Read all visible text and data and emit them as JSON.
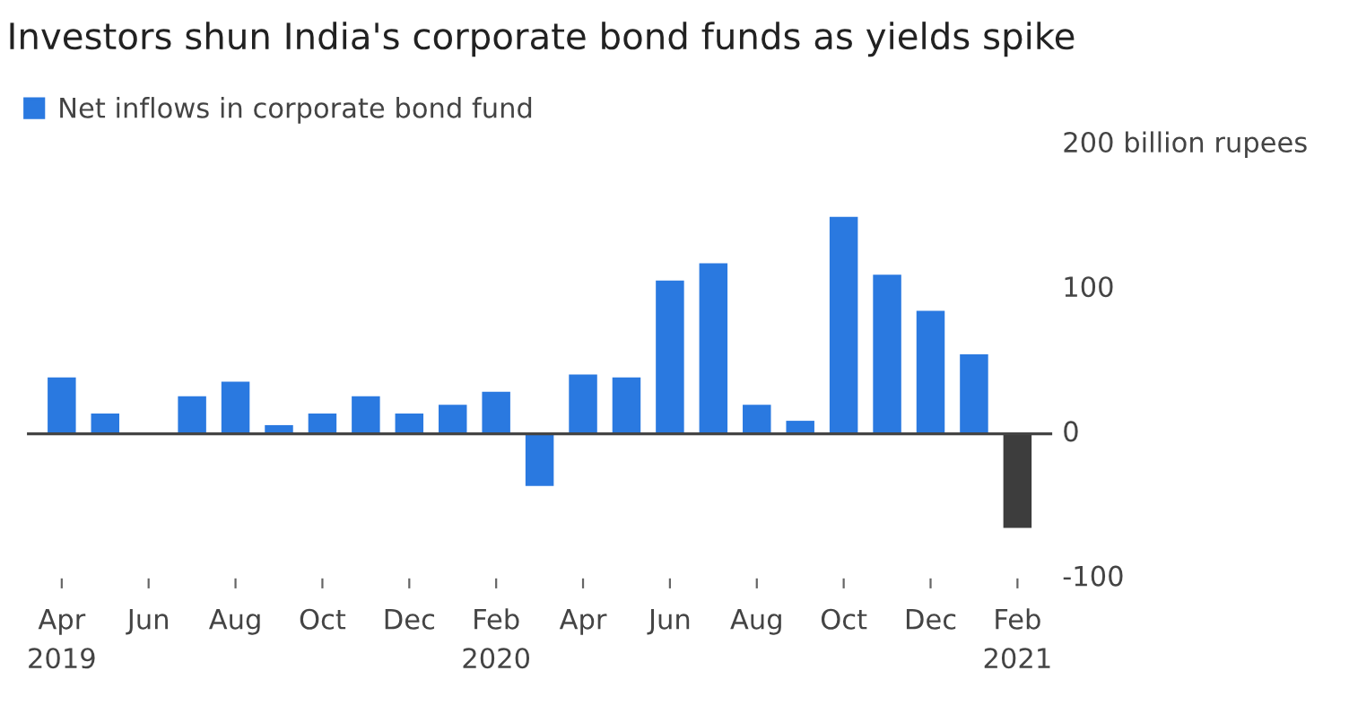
{
  "chart_data": {
    "type": "bar",
    "title": "Investors shun India's corporate bond funds as yields spike",
    "categories": [
      "Apr\n2019",
      null,
      "Jun",
      null,
      "Aug",
      null,
      "Oct",
      null,
      "Dec",
      null,
      "Feb\n2020",
      null,
      "Apr",
      null,
      "Jun",
      null,
      "Aug",
      null,
      "Oct",
      null,
      "Dec",
      null,
      "Feb\n2021"
    ],
    "series": [
      {
        "name": "Net inflows in corporate bond fund",
        "color": "#2a79e0",
        "colors": [
          "#2a79e0",
          "#2a79e0",
          "#2a79e0",
          "#2a79e0",
          "#2a79e0",
          "#2a79e0",
          "#2a79e0",
          "#2a79e0",
          "#2a79e0",
          "#2a79e0",
          "#2a79e0",
          "#2a79e0",
          "#2a79e0",
          "#2a79e0",
          "#2a79e0",
          "#2a79e0",
          "#2a79e0",
          "#2a79e0",
          "#2a79e0",
          "#2a79e0",
          "#2a79e0",
          "#2a79e0",
          "#3d3d3d"
        ],
        "values": [
          39,
          14,
          null,
          26,
          36,
          6,
          14,
          26,
          14,
          20,
          29,
          -36,
          41,
          39,
          106,
          118,
          20,
          9,
          150,
          110,
          85,
          55,
          -65
        ]
      }
    ],
    "ylim": [
      -100,
      200
    ],
    "ref_lines": [
      {
        "axis": "y",
        "value": 0,
        "color": "#444444"
      }
    ],
    "yticks": [
      -100,
      0,
      100,
      {
        "value": 200,
        "label": "200 billion rupees"
      }
    ],
    "grid": false,
    "legend": "top left"
  }
}
